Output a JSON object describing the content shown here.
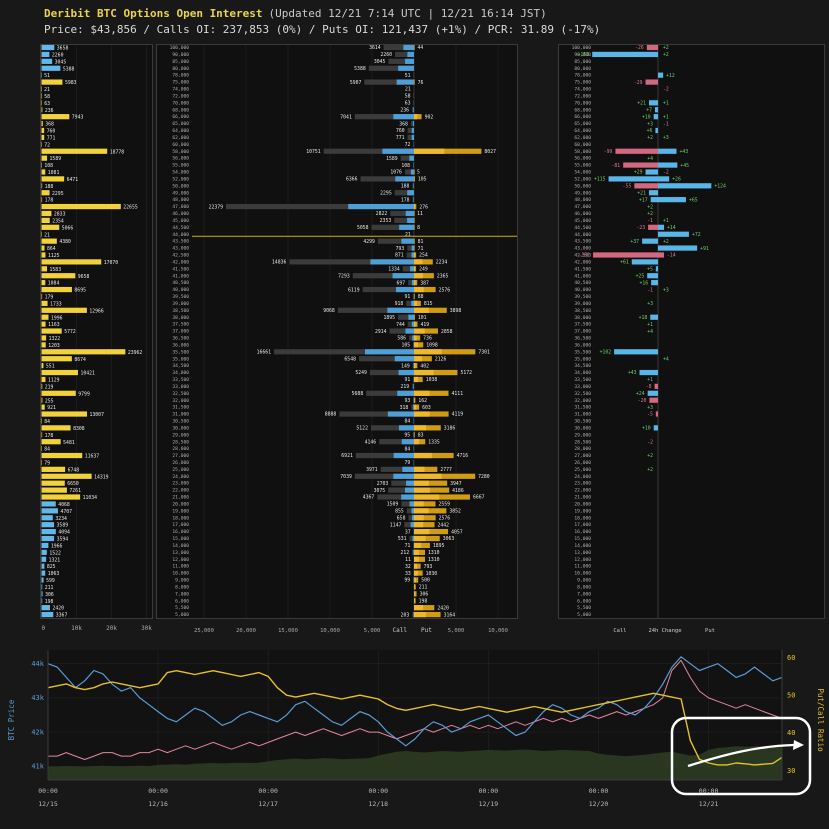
{
  "header": {
    "title": "Deribit BTC Options Open Interest",
    "updated": "(Updated 12/21 7:14 UTC | 12/21 16:14 JST)",
    "stats": "Price: $43,856 / Calls OI: 237,853 (0%) / Puts OI: 121,437 (+1%) / PCR: 31.89 (-17%)"
  },
  "colors": {
    "background": "#181818",
    "panel_bg": "#101010",
    "panel_border": "#3a3a3a",
    "grid": "#242424",
    "call_bar": "#3b3b3b",
    "call_bar_accent": "#4d9fd6",
    "put_bar": "#d19c12",
    "put_bar_accent": "#edb82a",
    "left_bar_yellow": "#f2d23b",
    "left_bar_cyan": "#62b8e8",
    "change_positive": "#58b7e8",
    "change_negative": "#d46880",
    "change_pos_text": "#6fcf6f",
    "change_neg_text": "#e07898",
    "price_line": "#c8b400",
    "btc_line": "#5b9bd5",
    "pcr_line": "#e6c229",
    "secondary_line": "#e685a0",
    "area_fill": "#2e3d23",
    "tick_text": "#aaaaaa",
    "value_text": "#e8e8e8",
    "strike_text": "#b0b0b0"
  },
  "chart_data": {
    "open_interest_by_strike": {
      "type": "bar",
      "current_price": 43856,
      "strikes": [
        100000,
        90000,
        85000,
        80000,
        78000,
        75000,
        74000,
        72000,
        70000,
        68000,
        66000,
        65000,
        64000,
        62000,
        60000,
        58000,
        56000,
        55000,
        54000,
        52000,
        50000,
        49000,
        48000,
        47000,
        46000,
        45000,
        44500,
        44000,
        43500,
        43000,
        42500,
        42000,
        41500,
        41000,
        40500,
        40000,
        39500,
        39000,
        38500,
        38000,
        37500,
        37000,
        36500,
        36000,
        35500,
        35000,
        34500,
        34000,
        33500,
        33000,
        32500,
        32000,
        31500,
        31000,
        30500,
        30000,
        29000,
        28500,
        28000,
        27000,
        26000,
        25000,
        24000,
        23000,
        22000,
        21000,
        20000,
        19000,
        18000,
        17000,
        16000,
        15000,
        14000,
        13000,
        12000,
        11000,
        10000,
        9000,
        8000,
        7000,
        6000,
        5500,
        5000
      ],
      "call_oi": [
        3614,
        2260,
        3045,
        5388,
        51,
        5907,
        21,
        58,
        63,
        236,
        7041,
        368,
        760,
        771,
        72,
        10751,
        1589,
        108,
        1076,
        6366,
        188,
        2295,
        178,
        22379,
        2822,
        2353,
        5058,
        21,
        4299,
        793,
        871,
        14836,
        1334,
        7293,
        697,
        6119,
        91,
        918,
        9068,
        1895,
        744,
        2914,
        586,
        105,
        16661,
        6548,
        149,
        5249,
        91,
        219,
        5688,
        93,
        318,
        8888,
        84,
        5122,
        95,
        4146,
        84,
        6921,
        79,
        3971,
        7039,
        2703,
        3075,
        4367,
        1509,
        855,
        658,
        1147,
        37,
        531,
        71,
        212,
        11,
        32,
        33,
        99,
        0,
        0,
        0,
        0,
        203
      ],
      "put_oi": [
        44,
        0,
        0,
        0,
        0,
        76,
        0,
        0,
        0,
        0,
        902,
        0,
        0,
        0,
        0,
        8027,
        0,
        0,
        5,
        105,
        0,
        0,
        0,
        276,
        11,
        1,
        8,
        0,
        81,
        71,
        254,
        2234,
        249,
        2365,
        387,
        2576,
        88,
        815,
        3898,
        101,
        419,
        2858,
        736,
        1098,
        7301,
        2126,
        402,
        5172,
        1038,
        0,
        4111,
        162,
        603,
        4119,
        0,
        3186,
        83,
        1335,
        0,
        4716,
        0,
        2777,
        7280,
        3947,
        4186,
        6667,
        2559,
        3852,
        2576,
        2442,
        4057,
        3063,
        1895,
        1310,
        1310,
        793,
        1030,
        500,
        211,
        306,
        198,
        2420,
        3164
      ],
      "call_change_24h": [
        -26,
        153,
        0,
        0,
        0,
        -29,
        0,
        0,
        21,
        7,
        10,
        3,
        6,
        2,
        0,
        -99,
        4,
        -81,
        29,
        115,
        -55,
        21,
        17,
        2,
        2,
        -1,
        -23,
        0,
        37,
        0,
        -151,
        61,
        5,
        25,
        16,
        -1,
        0,
        3,
        0,
        18,
        1,
        4,
        0,
        0,
        102,
        0,
        0,
        43,
        1,
        -8,
        24,
        -20,
        3,
        -5,
        0,
        10,
        0,
        -2,
        0,
        2,
        0,
        2,
        0,
        0,
        0,
        0,
        0,
        0,
        0,
        0,
        0,
        0,
        0,
        0,
        0,
        0,
        0,
        0,
        0,
        0,
        0,
        0,
        0
      ],
      "put_change_24h": [
        2,
        2,
        0,
        0,
        12,
        0,
        -2,
        0,
        1,
        0,
        1,
        -1,
        0,
        3,
        0,
        43,
        0,
        45,
        -2,
        26,
        124,
        0,
        65,
        0,
        0,
        1,
        14,
        72,
        2,
        91,
        -14,
        0,
        0,
        0,
        0,
        3,
        0,
        0,
        0,
        0,
        0,
        0,
        0,
        0,
        0,
        4,
        0,
        0,
        0,
        0,
        0,
        0,
        0,
        0,
        0,
        0,
        0,
        0,
        0,
        0,
        0,
        0,
        0,
        0,
        0,
        0,
        0,
        0,
        0,
        0,
        0,
        0,
        0,
        0,
        0,
        0,
        0,
        0,
        0,
        0,
        0,
        0,
        0
      ],
      "total_axis": {
        "xlim": [
          0,
          30000
        ],
        "ticks": [
          "0",
          "10k",
          "20k",
          "30k"
        ],
        "tick_values": [
          0,
          10000,
          20000,
          30000
        ]
      },
      "oi_axis": {
        "call_ticks": [
          "25,000",
          "20,000",
          "15,000",
          "10,000",
          "5,000"
        ],
        "call_tick_values": [
          25000,
          20000,
          15000,
          10000,
          5000
        ],
        "put_ticks": [
          "5,000",
          "10,000"
        ],
        "put_tick_values": [
          5000,
          10000
        ],
        "call_label": "Call",
        "put_label": "Put"
      },
      "change_axis": {
        "call_label": "Call",
        "title": "24h Change",
        "put_label": "Put"
      }
    },
    "timeseries": {
      "type": "line",
      "dates": [
        "12/15",
        "12/16",
        "12/17",
        "12/18",
        "12/19",
        "12/20",
        "12/21"
      ],
      "time_tick_label": "00:00",
      "left_axis": {
        "title": "BTC Price",
        "ticks": [
          "44k",
          "43k",
          "42k",
          "41k"
        ],
        "tick_values": [
          44,
          43,
          42,
          41
        ],
        "range": [
          40.6,
          44.4
        ]
      },
      "right_axis": {
        "title": "Put/Call Ratio",
        "ticks": [
          "60",
          "50",
          "40",
          "30"
        ],
        "tick_values": [
          60,
          50,
          40,
          30
        ],
        "range": [
          27.5,
          62
        ]
      },
      "btc_price_k": [
        44.0,
        43.9,
        43.6,
        43.3,
        43.5,
        43.8,
        43.7,
        43.4,
        43.2,
        43.3,
        43.0,
        42.8,
        42.6,
        42.4,
        42.3,
        42.5,
        42.7,
        42.6,
        42.4,
        42.2,
        42.3,
        42.5,
        42.6,
        42.5,
        42.4,
        42.3,
        42.5,
        42.8,
        42.9,
        42.7,
        42.5,
        42.3,
        42.2,
        42.4,
        42.6,
        42.5,
        42.3,
        42.0,
        41.8,
        41.6,
        41.8,
        42.1,
        42.3,
        42.2,
        42.0,
        42.1,
        42.3,
        42.4,
        42.5,
        42.3,
        42.1,
        41.9,
        42.0,
        42.3,
        42.6,
        42.8,
        42.7,
        42.5,
        42.4,
        42.6,
        42.7,
        42.9,
        42.8,
        42.6,
        42.5,
        42.7,
        43.0,
        43.4,
        43.9,
        44.2,
        44.0,
        43.8,
        43.9,
        44.0,
        43.8,
        43.6,
        43.7,
        43.9,
        43.7,
        43.5,
        43.6
      ],
      "put_call_ratio": [
        52,
        52.5,
        53,
        52,
        51.5,
        52,
        53,
        53.5,
        53,
        52.5,
        52,
        52.5,
        53,
        56,
        56.5,
        56,
        55.5,
        56,
        56.5,
        56,
        55.5,
        55,
        55.5,
        56,
        55,
        52,
        50,
        49.5,
        50,
        50.5,
        50,
        49.5,
        49,
        49.5,
        50,
        49.5,
        49,
        47.5,
        46.5,
        46,
        46.5,
        47,
        47.5,
        47,
        46.5,
        46,
        46.5,
        47,
        46.5,
        46,
        45.5,
        46,
        46.5,
        47,
        46.5,
        46,
        45.5,
        46,
        46.5,
        47,
        47.5,
        48,
        48.5,
        49,
        49.5,
        50,
        50.5,
        50,
        49.5,
        49,
        38,
        33,
        32,
        31.5,
        31.5,
        32,
        31.8,
        31.5,
        31.7,
        31.9,
        33.5
      ],
      "secondary_price_k": [
        41.3,
        41.3,
        41.4,
        41.3,
        41.2,
        41.3,
        41.4,
        41.4,
        41.3,
        41.3,
        41.4,
        41.4,
        41.5,
        41.4,
        41.5,
        41.6,
        41.5,
        41.6,
        41.7,
        41.6,
        41.5,
        41.6,
        41.7,
        41.6,
        41.7,
        41.8,
        41.9,
        42.0,
        41.9,
        42.0,
        42.1,
        42.0,
        41.9,
        42.0,
        42.1,
        42.0,
        42.0,
        41.9,
        41.8,
        41.9,
        42.0,
        42.1,
        42.0,
        42.1,
        42.2,
        42.1,
        42.2,
        42.1,
        42.2,
        42.1,
        42.2,
        42.3,
        42.2,
        42.3,
        42.4,
        42.3,
        42.4,
        42.3,
        42.4,
        42.5,
        42.4,
        42.5,
        42.6,
        42.5,
        42.6,
        42.7,
        42.8,
        43.0,
        43.8,
        44.1,
        43.6,
        43.2,
        43.0,
        42.9,
        42.8,
        42.7,
        42.8,
        42.7,
        42.6,
        42.5,
        42.4
      ],
      "area_series": [
        31,
        31,
        31.2,
        31.1,
        31,
        31.2,
        31.3,
        31.2,
        31.1,
        31.2,
        31.3,
        31.2,
        31.5,
        31.6,
        31.7,
        31.6,
        31.8,
        31.9,
        32,
        31.9,
        32,
        32.1,
        32,
        32.1,
        32.5,
        32.8,
        33,
        33.2,
        33,
        33.1,
        33.3,
        33.2,
        33,
        33.1,
        33.2,
        33.3,
        34,
        34.5,
        35,
        35.2,
        35,
        34.8,
        35,
        35.2,
        35.1,
        35,
        35.2,
        35.3,
        35.5,
        35.4,
        35.3,
        35.5,
        35.6,
        35.4,
        35.2,
        35.3,
        35.5,
        35.4,
        35.3,
        35.2,
        34.5,
        34.2,
        34,
        33.8,
        34,
        34.2,
        34.5,
        34.8,
        35,
        34.5,
        34,
        34.2,
        35.5,
        36,
        36.2,
        36.5,
        36.3,
        36.5,
        36.4,
        36.5,
        36.6
      ],
      "annotation": {
        "present": true,
        "shape": "rounded-rect-with-arrow",
        "location": "12/21 lower right"
      }
    }
  }
}
